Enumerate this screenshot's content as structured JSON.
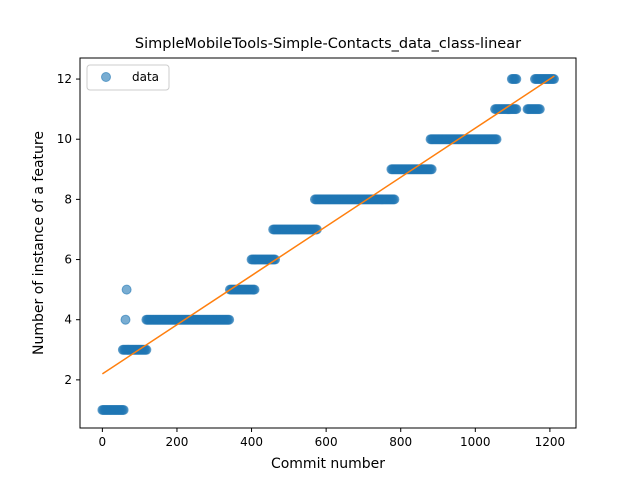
{
  "chart_data": {
    "type": "scatter",
    "title": "SimpleMobileTools-Simple-Contacts_data_class-linear",
    "xlabel": "Commit number",
    "ylabel": "Number of instance of a feature",
    "xlim": [
      -60,
      1270
    ],
    "ylim": [
      0.4,
      12.7
    ],
    "xticks": [
      0,
      200,
      400,
      600,
      800,
      1000,
      1200
    ],
    "yticks": [
      2,
      4,
      6,
      8,
      10,
      12
    ],
    "grid": false,
    "legend": {
      "position": "top-left",
      "entries": [
        {
          "label": "data",
          "marker": "circle",
          "color": "#1f77b4"
        }
      ]
    },
    "colors": {
      "data": "#1f77b4",
      "fit": "#ff7f0e"
    },
    "series": [
      {
        "name": "data",
        "kind": "scatter",
        "segments": [
          {
            "x_start": 0,
            "x_end": 58,
            "y": 1
          },
          {
            "x_start": 62,
            "x_end": 62,
            "y": 4
          },
          {
            "x_start": 65,
            "x_end": 65,
            "y": 5
          },
          {
            "x_start": 55,
            "x_end": 118,
            "y": 3
          },
          {
            "x_start": 118,
            "x_end": 342,
            "y": 4
          },
          {
            "x_start": 342,
            "x_end": 408,
            "y": 5
          },
          {
            "x_start": 400,
            "x_end": 465,
            "y": 6
          },
          {
            "x_start": 458,
            "x_end": 575,
            "y": 7
          },
          {
            "x_start": 570,
            "x_end": 783,
            "y": 8
          },
          {
            "x_start": 775,
            "x_end": 885,
            "y": 9
          },
          {
            "x_start": 880,
            "x_end": 1057,
            "y": 10
          },
          {
            "x_start": 1053,
            "x_end": 1112,
            "y": 11
          },
          {
            "x_start": 1098,
            "x_end": 1110,
            "y": 12
          },
          {
            "x_start": 1140,
            "x_end": 1175,
            "y": 11
          },
          {
            "x_start": 1160,
            "x_end": 1212,
            "y": 12
          }
        ]
      },
      {
        "name": "fit",
        "kind": "line",
        "x": [
          0,
          1212
        ],
        "y": [
          2.2,
          12.1
        ]
      }
    ]
  }
}
